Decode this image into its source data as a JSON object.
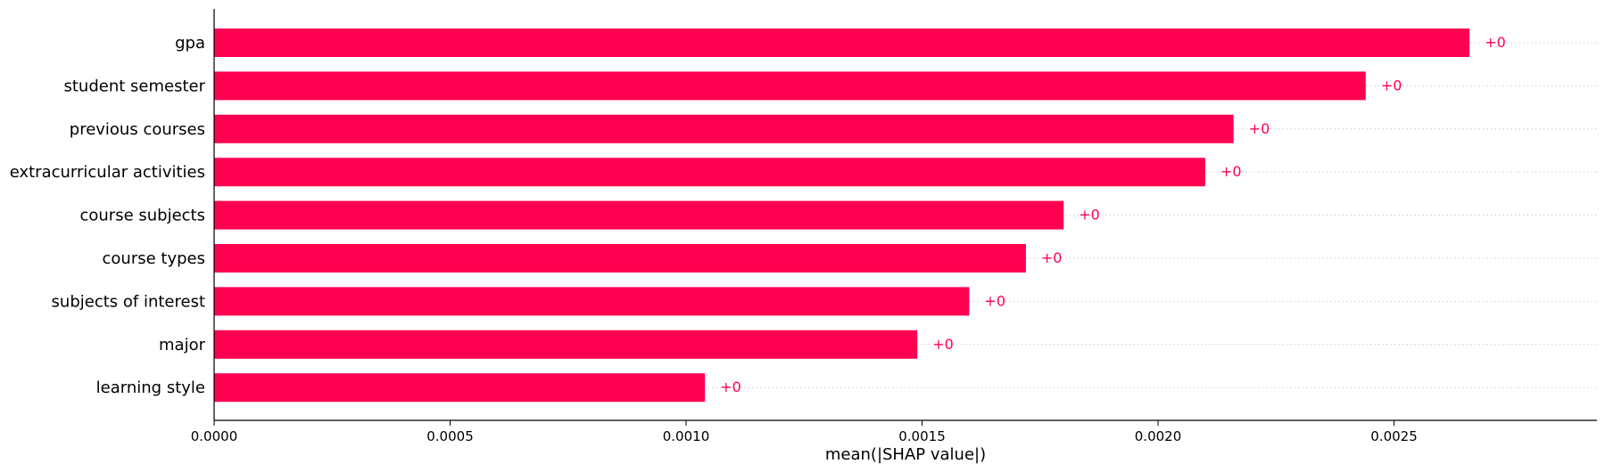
{
  "chart_data": {
    "type": "bar",
    "orientation": "horizontal",
    "categories": [
      "gpa",
      "student semester",
      "previous courses",
      "extracurricular activities",
      "course subjects",
      "course types",
      "subjects of interest",
      "major",
      "learning style"
    ],
    "values": [
      0.00266,
      0.00244,
      0.00216,
      0.0021,
      0.0018,
      0.00172,
      0.0016,
      0.00149,
      0.00104
    ],
    "value_labels": [
      "+0",
      "+0",
      "+0",
      "+0",
      "+0",
      "+0",
      "+0",
      "+0",
      "+0"
    ],
    "xlabel": "mean(|SHAP value|)",
    "xlim": [
      0,
      0.00293
    ],
    "x_ticks": [
      0.0,
      0.0005,
      0.001,
      0.0015,
      0.002,
      0.0025
    ],
    "x_tick_labels": [
      "0.0000",
      "0.0005",
      "0.0010",
      "0.0015",
      "0.0020",
      "0.0025"
    ],
    "bar_color": "#ff0051",
    "grid": "dotted horizontal row guides",
    "title": ""
  }
}
